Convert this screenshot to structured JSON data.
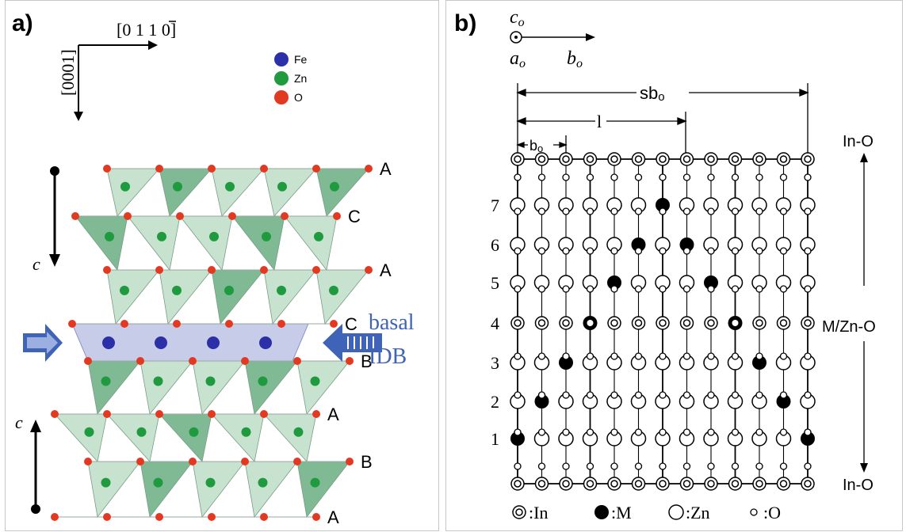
{
  "panel_a": {
    "label": "a)",
    "axis_horizontal": "[0 1  1 0]",
    "axis_h_bar_digit": "1",
    "axis_vertical": "[0001]",
    "legend": [
      {
        "name": "Fe",
        "color": "#2b2fa8"
      },
      {
        "name": "Zn",
        "color": "#1f9a3e"
      },
      {
        "name": "O",
        "color": "#e23a22"
      }
    ],
    "layers": [
      "A",
      "C",
      "A",
      "C",
      "B",
      "A",
      "B",
      "A"
    ],
    "c_label_top": "c",
    "c_label_bottom": "c",
    "annotation_line1": "basal",
    "annotation_line2": "IDB",
    "colors": {
      "tet_light": "#b9dcc4",
      "tet_dark": "#5fa97a",
      "idb_band": "#c7cce8",
      "arrow_blue": "#3f63b6"
    }
  },
  "panel_b": {
    "label": "b)",
    "axis_c": "c",
    "axis_c_sub": "o",
    "axis_a": "a",
    "axis_a_sub": "o",
    "axis_b": "b",
    "axis_b_sub": "o",
    "dim_sb": "sb",
    "dim_sb_sub": "o",
    "dim_l": "l",
    "dim_b": "b",
    "dim_b_sub": "o",
    "row_numbers": [
      "7",
      "6",
      "5",
      "4",
      "3",
      "2",
      "1"
    ],
    "right_top": "In-O",
    "right_middle": "M/Zn-O",
    "right_bottom": "In-O",
    "legend": [
      {
        "symbol": "In",
        "text": ":In"
      },
      {
        "symbol": "M",
        "text": ":M"
      },
      {
        "symbol": "Zn",
        "text": ":Zn"
      },
      {
        "symbol": "O",
        "text": ":O"
      }
    ]
  }
}
